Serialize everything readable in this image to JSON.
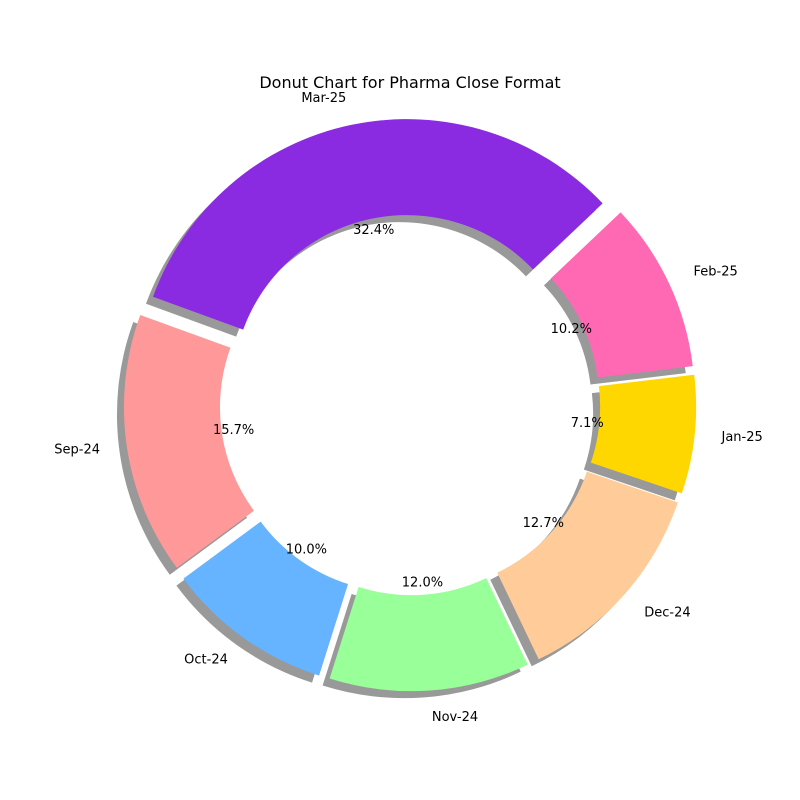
{
  "chart_data": {
    "type": "pie",
    "variant": "donut",
    "title": "Donut Chart for Pharma Close Format",
    "categories": [
      "Sep-24",
      "Oct-24",
      "Nov-24",
      "Dec-24",
      "Jan-25",
      "Feb-25",
      "Mar-25"
    ],
    "values": [
      15.7,
      10.0,
      12.0,
      12.7,
      7.1,
      10.2,
      32.4
    ],
    "percent_labels": [
      "15.7%",
      "10.0%",
      "12.0%",
      "12.7%",
      "7.1%",
      "10.2%",
      "32.4%"
    ],
    "colors": [
      "#ff9999",
      "#66b3ff",
      "#99ff99",
      "#ffcc99",
      "#ffd700",
      "#ff69b4",
      "#8a2be2"
    ],
    "exploded": true,
    "shadow": true
  }
}
